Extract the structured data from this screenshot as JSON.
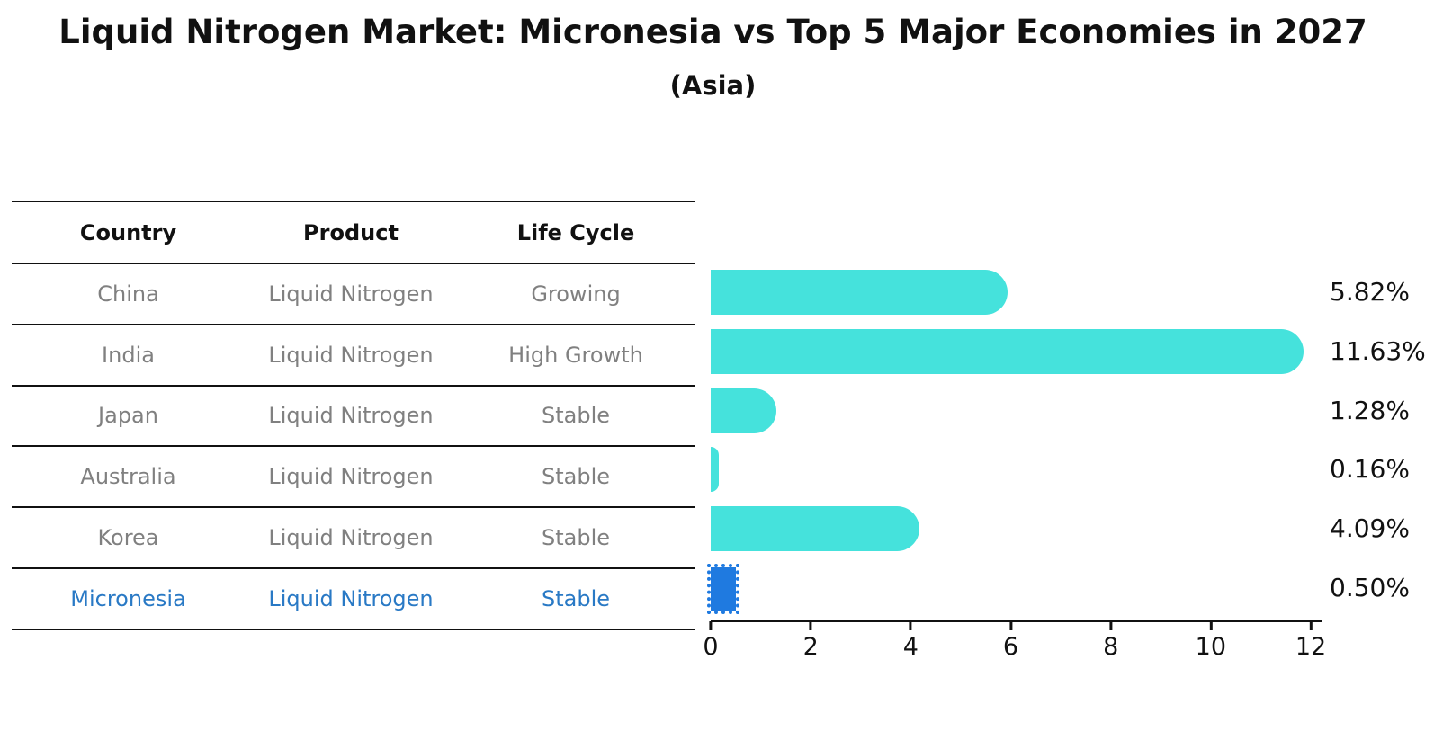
{
  "title": "Liquid Nitrogen Market: Micronesia vs Top 5 Major Economies in 2027",
  "subtitle": "(Asia)",
  "table": {
    "headers": [
      "Country",
      "Product",
      "Life Cycle"
    ],
    "rows": [
      {
        "country": "China",
        "product": "Liquid Nitrogen",
        "life_cycle": "Growing",
        "highlighted": false
      },
      {
        "country": "India",
        "product": "Liquid Nitrogen",
        "life_cycle": "High Growth",
        "highlighted": false
      },
      {
        "country": "Japan",
        "product": "Liquid Nitrogen",
        "life_cycle": "Stable",
        "highlighted": false
      },
      {
        "country": "Australia",
        "product": "Liquid Nitrogen",
        "life_cycle": "Stable",
        "highlighted": false
      },
      {
        "country": "Korea",
        "product": "Liquid Nitrogen",
        "life_cycle": "Stable",
        "highlighted": false
      },
      {
        "country": "Micronesia",
        "product": "Liquid Nitrogen",
        "life_cycle": "Stable",
        "highlighted": true
      }
    ]
  },
  "chart_data": {
    "type": "bar",
    "orientation": "horizontal",
    "title": "Liquid Nitrogen Market: Micronesia vs Top 5 Major Economies in 2027",
    "subtitle": "(Asia)",
    "categories": [
      "China",
      "India",
      "Japan",
      "Australia",
      "Korea",
      "Micronesia"
    ],
    "values": [
      5.82,
      11.63,
      1.28,
      0.16,
      4.09,
      0.5
    ],
    "value_labels": [
      "5.82%",
      "11.63%",
      "1.28%",
      "0.16%",
      "4.09%",
      "0.50%"
    ],
    "x_ticks": [
      "0",
      "2",
      "4",
      "6",
      "8",
      "10",
      "12"
    ],
    "xlim": [
      0,
      12
    ],
    "grid": false,
    "legend": false,
    "highlight_index": 5,
    "bar_colors": [
      "#45E2DC",
      "#45E2DC",
      "#45E2DC",
      "#45E2DC",
      "#45E2DC",
      "#1F7AE0"
    ]
  },
  "colors": {
    "bar_default": "#45E2DC",
    "bar_highlight": "#1F7AE0",
    "highlight_text": "#2979C5",
    "table_text": "#808080",
    "axis": "#111111"
  }
}
